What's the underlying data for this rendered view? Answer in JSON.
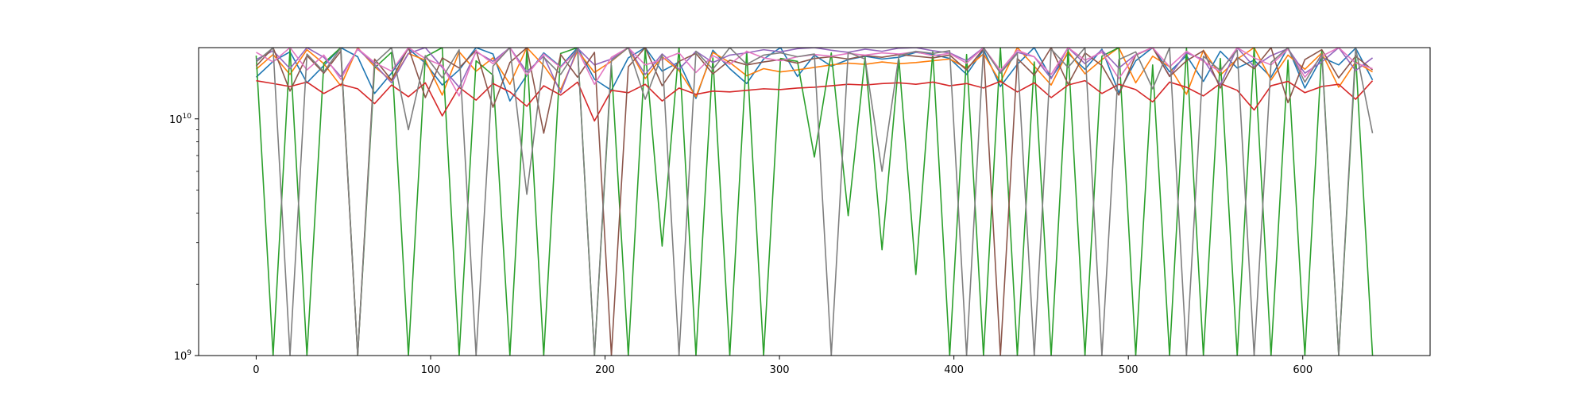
{
  "chart_data": {
    "type": "line",
    "title": "",
    "xlabel": "",
    "ylabel": "",
    "xlim": [
      -33,
      673
    ],
    "ylim": [
      1000000000,
      20000000000
    ],
    "y_scale": "log",
    "grid": false,
    "legend": "none",
    "x_ticks": [
      0,
      100,
      200,
      300,
      400,
      500,
      600
    ],
    "y_ticks": [
      1000000000,
      10000000000
    ],
    "y_tick_labels": [
      {
        "base": "10",
        "exp": "9"
      },
      {
        "base": "10",
        "exp": "10"
      }
    ],
    "x_range": [
      0,
      640
    ],
    "series": [
      {
        "color": "#1f77b4",
        "values": [
          15000000000,
          17500000000,
          19200000000,
          14200000000,
          16800000000,
          20000000000,
          18300000000,
          12800000000,
          15600000000,
          19800000000,
          17200000000,
          13900000000,
          16100000000,
          20000000000,
          18800000000,
          11900000000,
          15300000000,
          19000000000,
          16600000000,
          20000000000,
          14700000000,
          13200000000,
          18100000000,
          20000000000,
          15900000000,
          17400000000,
          12200000000,
          19500000000,
          16300000000,
          14100000000,
          17900000000,
          20000000000,
          15100000000,
          18600000000,
          16700000000,
          17800000000,
          18400000000,
          17900000000,
          18200000000,
          19100000000,
          18700000000,
          18000000000,
          15400000000,
          19600000000,
          13700000000,
          17000000000,
          20000000000,
          14900000000,
          18900000000,
          16200000000,
          19700000000,
          12900000000,
          17600000000,
          20000000000,
          15800000000,
          18500000000,
          14400000000,
          19300000000,
          16400000000,
          17700000000,
          15000000000,
          20000000000,
          13500000000,
          18200000000,
          16900000000,
          19900000000,
          14600000000
        ]
      },
      {
        "color": "#ff7f0e",
        "values": [
          16200000000,
          18700000000,
          15400000000,
          19600000000,
          17100000000,
          13800000000,
          20000000000,
          16600000000,
          14500000000,
          18900000000,
          17700000000,
          12600000000,
          19200000000,
          15900000000,
          18100000000,
          14000000000,
          20000000000,
          16800000000,
          13300000000,
          19400000000,
          15700000000,
          17500000000,
          20000000000,
          14800000000,
          18300000000,
          16000000000,
          12400000000,
          19100000000,
          17300000000,
          15200000000,
          16300000000,
          15800000000,
          16100000000,
          16500000000,
          16900000000,
          17200000000,
          17000000000,
          17400000000,
          17100000000,
          17300000000,
          17600000000,
          17900000000,
          16400000000,
          18800000000,
          14300000000,
          20000000000,
          16700000000,
          13900000000,
          19300000000,
          15500000000,
          17800000000,
          20000000000,
          14200000000,
          18400000000,
          16600000000,
          12700000000,
          19500000000,
          15300000000,
          17900000000,
          20000000000,
          14600000000,
          18600000000,
          16200000000,
          19000000000,
          13600000000,
          17400000000,
          15800000000
        ]
      },
      {
        "color": "#2ca02c",
        "values": [
          18500000000,
          1000000000,
          19800000000,
          1000000000,
          17200000000,
          20000000000,
          1000000000,
          16400000000,
          19100000000,
          1000000000,
          18300000000,
          20000000000,
          1000000000,
          17600000000,
          15300000000,
          1000000000,
          19500000000,
          1000000000,
          18900000000,
          20000000000,
          1000000000,
          16800000000,
          1000000000,
          19700000000,
          2900000000,
          20000000000,
          1000000000,
          18100000000,
          1000000000,
          19300000000,
          1000000000,
          18000000000,
          17500000000,
          6900000000,
          19000000000,
          3900000000,
          18200000000,
          2800000000,
          17800000000,
          2200000000,
          19200000000,
          1000000000,
          18700000000,
          1000000000,
          20000000000,
          1000000000,
          17400000000,
          1000000000,
          19600000000,
          1000000000,
          18400000000,
          20000000000,
          1000000000,
          16900000000,
          1000000000,
          19900000000,
          1000000000,
          18000000000,
          1000000000,
          20000000000,
          1000000000,
          17700000000,
          1000000000,
          19400000000,
          1000000000,
          18600000000,
          1000000000
        ]
      },
      {
        "color": "#d62728",
        "values": [
          14500000000,
          14100000000,
          13700000000,
          14300000000,
          12800000000,
          14000000000,
          13400000000,
          11600000000,
          13900000000,
          12400000000,
          14200000000,
          10300000000,
          13600000000,
          12000000000,
          14100000000,
          13000000000,
          11300000000,
          13800000000,
          12600000000,
          14300000000,
          9800000000,
          13200000000,
          12900000000,
          14000000000,
          11900000000,
          13500000000,
          12700000000,
          13100000000,
          13000000000,
          13200000000,
          13400000000,
          13300000000,
          13500000000,
          13600000000,
          13800000000,
          14000000000,
          13900000000,
          14100000000,
          14200000000,
          14000000000,
          14300000000,
          13800000000,
          14100000000,
          13500000000,
          14400000000,
          13000000000,
          14200000000,
          12300000000,
          13900000000,
          14500000000,
          12800000000,
          14000000000,
          13300000000,
          11800000000,
          14300000000,
          13600000000,
          12500000000,
          14100000000,
          13200000000,
          10900000000,
          13800000000,
          14400000000,
          12900000000,
          13700000000,
          14000000000,
          12100000000,
          14500000000
        ]
      },
      {
        "color": "#9467bd",
        "values": [
          17800000000,
          19400000000,
          16300000000,
          20000000000,
          18200000000,
          15100000000,
          19700000000,
          17000000000,
          14200000000,
          18900000000,
          20000000000,
          16500000000,
          13600000000,
          19200000000,
          17500000000,
          20000000000,
          15800000000,
          18400000000,
          12900000000,
          19900000000,
          16900000000,
          17900000000,
          20000000000,
          15400000000,
          18800000000,
          16200000000,
          19300000000,
          17300000000,
          18600000000,
          19000000000,
          19600000000,
          19200000000,
          19800000000,
          20000000000,
          19500000000,
          19100000000,
          19700000000,
          19300000000,
          19900000000,
          20000000000,
          19400000000,
          19000000000,
          17600000000,
          20000000000,
          15700000000,
          19100000000,
          18300000000,
          14800000000,
          20000000000,
          17100000000,
          19500000000,
          16400000000,
          18700000000,
          20000000000,
          15200000000,
          19000000000,
          17800000000,
          13900000000,
          20000000000,
          16600000000,
          18500000000,
          19800000000,
          15600000000,
          17400000000,
          20000000000,
          16000000000,
          18100000000
        ]
      },
      {
        "color": "#8c564b",
        "values": [
          16700000000,
          20000000000,
          13100000000,
          18500000000,
          15600000000,
          19300000000,
          1000000000,
          17900000000,
          14600000000,
          20000000000,
          12300000000,
          18100000000,
          16400000000,
          19500000000,
          11200000000,
          17300000000,
          20000000000,
          8700000000,
          18700000000,
          15000000000,
          19100000000,
          1000000000,
          16600000000,
          20000000000,
          13800000000,
          17500000000,
          18900000000,
          15500000000,
          17700000000,
          16900000000,
          17400000000,
          17800000000,
          17200000000,
          18000000000,
          18300000000,
          17900000000,
          18500000000,
          18200000000,
          18700000000,
          18400000000,
          18100000000,
          18600000000,
          16100000000,
          19800000000,
          1000000000,
          18000000000,
          15300000000,
          20000000000,
          14000000000,
          19000000000,
          16800000000,
          12600000000,
          18600000000,
          20000000000,
          15100000000,
          17600000000,
          19400000000,
          13500000000,
          18200000000,
          16300000000,
          20000000000,
          11700000000,
          17800000000,
          19600000000,
          14900000000,
          18400000000,
          16100000000
        ]
      },
      {
        "color": "#e377c2",
        "values": [
          19100000000,
          17400000000,
          20000000000,
          16100000000,
          18600000000,
          14700000000,
          19800000000,
          17300000000,
          15900000000,
          20000000000,
          18000000000,
          16800000000,
          12500000000,
          19400000000,
          17100000000,
          20000000000,
          15300000000,
          18800000000,
          16500000000,
          19600000000,
          14000000000,
          18200000000,
          20000000000,
          16900000000,
          17800000000,
          19000000000,
          15700000000,
          18500000000,
          17000000000,
          19300000000,
          18100000000,
          17600000000,
          18300000000,
          18700000000,
          18400000000,
          18900000000,
          18600000000,
          19000000000,
          18800000000,
          19200000000,
          18500000000,
          18900000000,
          17200000000,
          20000000000,
          16000000000,
          19500000000,
          18300000000,
          15400000000,
          20000000000,
          17700000000,
          19100000000,
          14800000000,
          18700000000,
          20000000000,
          16600000000,
          19300000000,
          17500000000,
          15800000000,
          20000000000,
          18100000000,
          16900000000,
          19700000000,
          15000000000,
          18400000000,
          20000000000,
          17200000000,
          16300000000
        ]
      },
      {
        "color": "#7f7f7f",
        "values": [
          17400000000,
          20000000000,
          1000000000,
          18800000000,
          15800000000,
          19900000000,
          1000000000,
          17200000000,
          20000000000,
          9000000000,
          18500000000,
          14900000000,
          19600000000,
          1000000000,
          16700000000,
          20000000000,
          4800000000,
          18200000000,
          15400000000,
          19800000000,
          1000000000,
          17600000000,
          20000000000,
          12100000000,
          18700000000,
          1000000000,
          19300000000,
          16200000000,
          20000000000,
          17000000000,
          18600000000,
          19000000000,
          18300000000,
          18800000000,
          1000000000,
          19100000000,
          17900000000,
          6000000000,
          18500000000,
          19300000000,
          18900000000,
          19400000000,
          1000000000,
          20000000000,
          15600000000,
          18900000000,
          1000000000,
          19700000000,
          16500000000,
          20000000000,
          1000000000,
          17800000000,
          19200000000,
          13400000000,
          20000000000,
          1000000000,
          18400000000,
          16000000000,
          19500000000,
          1000000000,
          17300000000,
          20000000000,
          14300000000,
          18800000000,
          1000000000,
          19900000000,
          8700000000
        ]
      }
    ]
  }
}
